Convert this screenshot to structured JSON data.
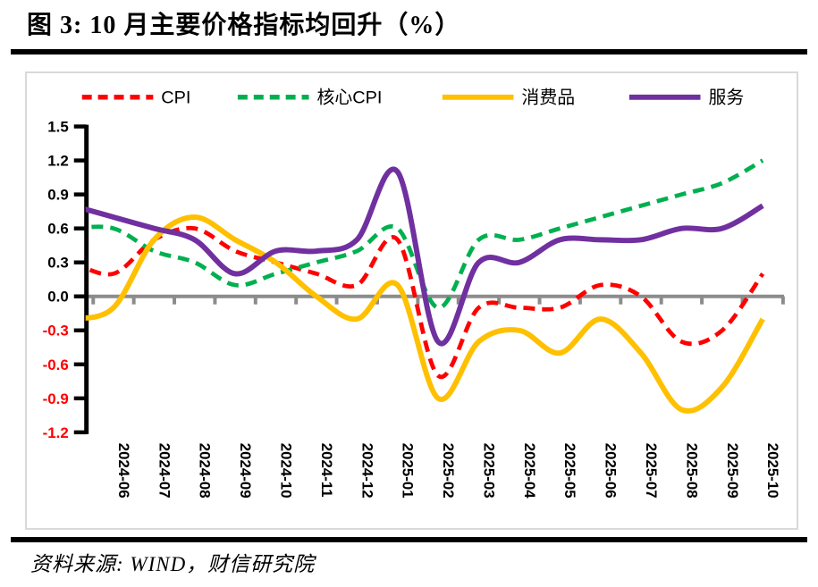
{
  "header": {
    "title": "图 3: 10 月主要价格指标均回升（%）"
  },
  "footer": {
    "source": "资料来源: WIND，财信研究院"
  },
  "chart_data": {
    "type": "line",
    "title": "图 3: 10 月主要价格指标均回升（%）",
    "unit": "%",
    "categories": [
      "2024-06",
      "2024-07",
      "2024-08",
      "2024-09",
      "2024-10",
      "2024-11",
      "2024-12",
      "2025-01",
      "2025-02",
      "2025-03",
      "2025-04",
      "2025-05",
      "2025-06",
      "2025-07",
      "2025-08",
      "2025-09",
      "2025-10"
    ],
    "series": [
      {
        "name": "CPI",
        "color": "#ff0000",
        "style": "dashed",
        "left_edge_lead_value": 0.3,
        "values": [
          0.2,
          0.5,
          0.6,
          0.4,
          0.3,
          0.2,
          0.1,
          0.5,
          -0.7,
          -0.1,
          -0.1,
          -0.1,
          0.1,
          0.0,
          -0.4,
          -0.3,
          0.2
        ]
      },
      {
        "name": "核心CPI",
        "color": "#00b050",
        "style": "dashed",
        "left_edge_lead_value": 0.6,
        "values": [
          0.6,
          0.4,
          0.3,
          0.1,
          0.2,
          0.3,
          0.4,
          0.6,
          -0.1,
          0.5,
          0.5,
          0.6,
          0.7,
          0.8,
          0.9,
          1.0,
          1.2
        ]
      },
      {
        "name": "消费品",
        "color": "#ffc000",
        "style": "solid",
        "left_edge_lead_value": -0.2,
        "values": [
          -0.1,
          0.5,
          0.7,
          0.5,
          0.3,
          0.0,
          -0.2,
          0.1,
          -0.9,
          -0.4,
          -0.3,
          -0.5,
          -0.2,
          -0.5,
          -1.0,
          -0.8,
          -0.2
        ]
      },
      {
        "name": "服务",
        "color": "#7030a0",
        "style": "solid",
        "left_edge_lead_value": 0.8,
        "values": [
          0.7,
          0.6,
          0.5,
          0.2,
          0.4,
          0.4,
          0.5,
          1.1,
          -0.4,
          0.3,
          0.3,
          0.5,
          0.5,
          0.5,
          0.6,
          0.6,
          0.8
        ]
      }
    ],
    "ylim": [
      -1.2,
      1.5
    ],
    "ytick_step": 0.3,
    "ytick_labels": [
      "1.5",
      "1.2",
      "0.9",
      "0.6",
      "0.3",
      "0.0",
      "-0.3",
      "-0.6",
      "-0.9",
      "-1.2"
    ],
    "negative_tick_color": "#ff0000",
    "positive_tick_color": "#000000",
    "zero_line_color": "#8c8c8c",
    "grid": "off",
    "legend_position": "top"
  }
}
